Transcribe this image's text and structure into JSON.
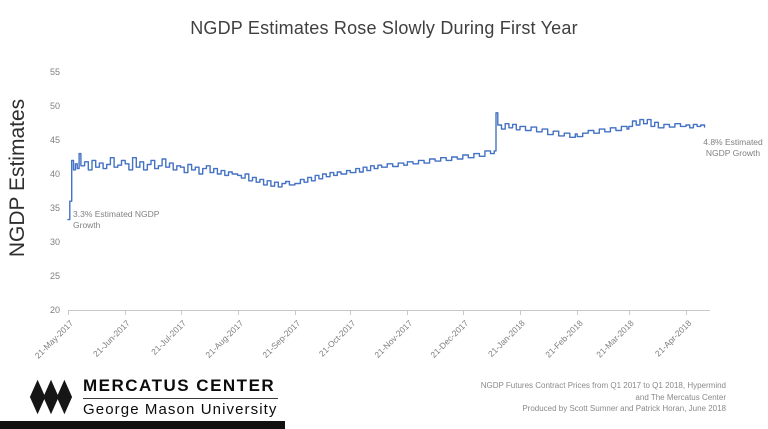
{
  "page": {
    "title": "NGDP Estimates Rose Slowly During First Year"
  },
  "annotations": {
    "start_line1": "3.3% Estimated NGDP",
    "start_line2": "Growth",
    "end_line1": "4.8% Estimated",
    "end_line2": "NGDP Growth"
  },
  "footer": {
    "org_name": "MERCATUS CENTER",
    "org_subtitle": "George Mason University",
    "credits": [
      "NGDP Futures Contract Prices from Q1 2017 to Q1 2018, Hypermind",
      "and The Mercatus Center",
      "Produced by Scott Sumner and Patrick Horan, June 2018"
    ]
  },
  "chart_data": {
    "type": "line",
    "title": "NGDP Estimates Rose Slowly During First Year",
    "xlabel": "",
    "ylabel": "NGDP Estimates",
    "ylim": [
      20,
      55
    ],
    "y_ticks": [
      20,
      25,
      30,
      35,
      40,
      45,
      50,
      55
    ],
    "grid": false,
    "legend": false,
    "line_color": "#4472C4",
    "x_domain_days": [
      0,
      348
    ],
    "x_ticks": [
      {
        "day": 0,
        "label": "21-May-2017"
      },
      {
        "day": 31,
        "label": "21-Jun-2017"
      },
      {
        "day": 61,
        "label": "21-Jul-2017"
      },
      {
        "day": 92,
        "label": "21-Aug-2017"
      },
      {
        "day": 123,
        "label": "21-Sep-2017"
      },
      {
        "day": 153,
        "label": "21-Oct-2017"
      },
      {
        "day": 184,
        "label": "21-Nov-2017"
      },
      {
        "day": 214,
        "label": "21-Dec-2017"
      },
      {
        "day": 245,
        "label": "21-Jan-2018"
      },
      {
        "day": 276,
        "label": "21-Feb-2018"
      },
      {
        "day": 304,
        "label": "21-Mar-2018"
      },
      {
        "day": 335,
        "label": "21-Apr-2018"
      }
    ],
    "point_annotations": [
      {
        "day": 0,
        "value": 33.3,
        "text": "3.3% Estimated NGDP Growth"
      },
      {
        "day": 348,
        "value": 46.9,
        "text": "4.8% Estimated NGDP Growth"
      }
    ],
    "series": [
      {
        "name": "NGDP Futures Contract Price",
        "points": [
          [
            0,
            33.3
          ],
          [
            1,
            36
          ],
          [
            2,
            39
          ],
          [
            2,
            42
          ],
          [
            3,
            40.6
          ],
          [
            4,
            41.5
          ],
          [
            5,
            40.8
          ],
          [
            6,
            43
          ],
          [
            7,
            41.2
          ],
          [
            9,
            41.8
          ],
          [
            11,
            40.6
          ],
          [
            13,
            42
          ],
          [
            15,
            41
          ],
          [
            17,
            41.6
          ],
          [
            19,
            40.8
          ],
          [
            21,
            41.4
          ],
          [
            23,
            42.4
          ],
          [
            25,
            41
          ],
          [
            27,
            41.3
          ],
          [
            29,
            42
          ],
          [
            31,
            41.5
          ],
          [
            33,
            40.6
          ],
          [
            35,
            42.4
          ],
          [
            37,
            41
          ],
          [
            39,
            41.8
          ],
          [
            41,
            40.6
          ],
          [
            43,
            41.4
          ],
          [
            45,
            42
          ],
          [
            47,
            40.8
          ],
          [
            49,
            41.2
          ],
          [
            51,
            42.2
          ],
          [
            53,
            41
          ],
          [
            55,
            41.6
          ],
          [
            57,
            40.6
          ],
          [
            59,
            41.2
          ],
          [
            61,
            41
          ],
          [
            63,
            40.2
          ],
          [
            65,
            41.4
          ],
          [
            67,
            40.6
          ],
          [
            69,
            41
          ],
          [
            71,
            40
          ],
          [
            73,
            40.8
          ],
          [
            75,
            41.2
          ],
          [
            77,
            40.2
          ],
          [
            79,
            40.8
          ],
          [
            81,
            40
          ],
          [
            83,
            40.5
          ],
          [
            85,
            39.8
          ],
          [
            87,
            40.3
          ],
          [
            89,
            40
          ],
          [
            92,
            39.8
          ],
          [
            94,
            39.4
          ],
          [
            96,
            40
          ],
          [
            98,
            39
          ],
          [
            100,
            39.5
          ],
          [
            102,
            38.8
          ],
          [
            104,
            39.2
          ],
          [
            106,
            38.4
          ],
          [
            108,
            39
          ],
          [
            110,
            38.2
          ],
          [
            112,
            38.8
          ],
          [
            114,
            38.1
          ],
          [
            116,
            38.6
          ],
          [
            118,
            38.9
          ],
          [
            120,
            38.4
          ],
          [
            123,
            38.6
          ],
          [
            126,
            39.2
          ],
          [
            128,
            38.8
          ],
          [
            130,
            39.5
          ],
          [
            132,
            39
          ],
          [
            134,
            39.8
          ],
          [
            136,
            39.3
          ],
          [
            138,
            40
          ],
          [
            140,
            39.6
          ],
          [
            142,
            40.2
          ],
          [
            144,
            39.8
          ],
          [
            146,
            40.3
          ],
          [
            148,
            40
          ],
          [
            151,
            40.5
          ],
          [
            153,
            40.2
          ],
          [
            156,
            40.8
          ],
          [
            158,
            40.3
          ],
          [
            160,
            41
          ],
          [
            162,
            40.5
          ],
          [
            164,
            41.2
          ],
          [
            166,
            40.8
          ],
          [
            168,
            41.3
          ],
          [
            170,
            41
          ],
          [
            173,
            41.5
          ],
          [
            176,
            41.1
          ],
          [
            179,
            41.6
          ],
          [
            182,
            41.3
          ],
          [
            184,
            41.8
          ],
          [
            187,
            41.5
          ],
          [
            190,
            42
          ],
          [
            193,
            41.6
          ],
          [
            196,
            42.2
          ],
          [
            199,
            41.9
          ],
          [
            202,
            42.4
          ],
          [
            205,
            42
          ],
          [
            208,
            42.5
          ],
          [
            211,
            42.2
          ],
          [
            214,
            42.8
          ],
          [
            217,
            42.4
          ],
          [
            220,
            43
          ],
          [
            223,
            42.6
          ],
          [
            226,
            43.4
          ],
          [
            229,
            43
          ],
          [
            231,
            43.4
          ],
          [
            232,
            49
          ],
          [
            233,
            47.2
          ],
          [
            235,
            46.6
          ],
          [
            237,
            47.4
          ],
          [
            239,
            46.8
          ],
          [
            241,
            47.3
          ],
          [
            243,
            46.5
          ],
          [
            245,
            47
          ],
          [
            248,
            46.4
          ],
          [
            251,
            46.9
          ],
          [
            254,
            46.2
          ],
          [
            257,
            46.6
          ],
          [
            260,
            45.8
          ],
          [
            263,
            46.3
          ],
          [
            266,
            45.6
          ],
          [
            269,
            46
          ],
          [
            272,
            45.4
          ],
          [
            275,
            45.9
          ],
          [
            276,
            45.5
          ],
          [
            279,
            46
          ],
          [
            282,
            46.4
          ],
          [
            285,
            46
          ],
          [
            288,
            46.6
          ],
          [
            291,
            46.2
          ],
          [
            294,
            46.8
          ],
          [
            297,
            46.4
          ],
          [
            300,
            47
          ],
          [
            303,
            46.6
          ],
          [
            304,
            47
          ],
          [
            306,
            47.8
          ],
          [
            308,
            47.2
          ],
          [
            310,
            48
          ],
          [
            312,
            47.4
          ],
          [
            314,
            48
          ],
          [
            316,
            47
          ],
          [
            318,
            47.6
          ],
          [
            320,
            46.8
          ],
          [
            323,
            47.3
          ],
          [
            326,
            46.9
          ],
          [
            329,
            47.4
          ],
          [
            332,
            47
          ],
          [
            335,
            47.2
          ],
          [
            337,
            46.8
          ],
          [
            339,
            47.3
          ],
          [
            341,
            47
          ],
          [
            343,
            47.2
          ],
          [
            345,
            46.9
          ]
        ]
      }
    ]
  }
}
